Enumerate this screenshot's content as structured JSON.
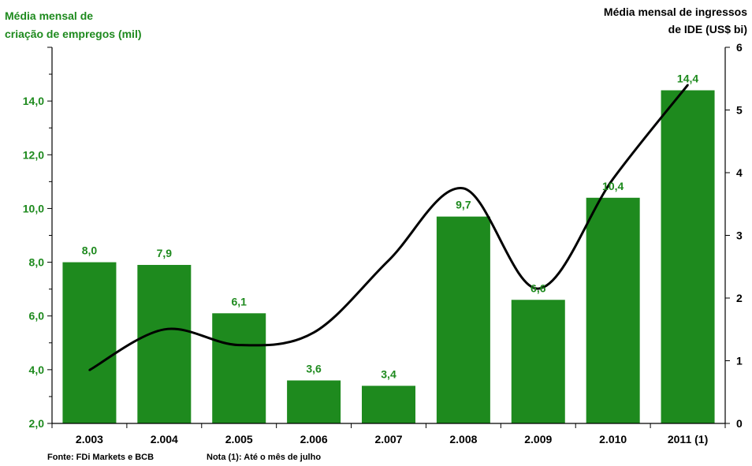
{
  "chart_data": {
    "type": "bar",
    "categories": [
      "2.003",
      "2.004",
      "2.005",
      "2.006",
      "2.007",
      "2.008",
      "2.009",
      "2.010",
      "2011 (1)"
    ],
    "series": [
      {
        "type": "bar",
        "values": [
          8.0,
          7.9,
          6.1,
          3.6,
          3.4,
          9.7,
          6.6,
          10.4,
          14.4
        ],
        "data_labels": [
          "8,0",
          "7,9",
          "6,1",
          "3,6",
          "3,4",
          "9,7",
          "6,6",
          "10,4",
          "14,4"
        ],
        "color": "#1e8a1e"
      },
      {
        "type": "line",
        "axis": "right",
        "values": [
          0.85,
          1.5,
          1.25,
          1.45,
          2.6,
          3.75,
          2.15,
          3.9,
          5.4
        ],
        "color": "#000000"
      }
    ],
    "ylabel_left": "Média mensal de criação de empregos (mil)",
    "ylabel_left_lines": [
      "Média mensal de",
      "criação de empregos (mil)"
    ],
    "ylabel_right": "Média mensal de ingressos de IDE (US$ bi)",
    "ylabel_right_lines": [
      "Média mensal de ingressos",
      "de IDE (US$ bi)"
    ],
    "ylim_left": [
      2.0,
      16.0
    ],
    "yticks_left": [
      "2,0",
      "4,0",
      "6,0",
      "8,0",
      "10,0",
      "12,0",
      "14,0"
    ],
    "ylim_right": [
      0,
      6
    ],
    "yticks_right": [
      "0",
      "1",
      "2",
      "3",
      "4",
      "5",
      "6"
    ],
    "grid": false,
    "colors": {
      "bar": "#1e8a1e",
      "line": "#000000",
      "axis": "#000000",
      "label_green": "#1e8a1e"
    }
  },
  "footnotes": {
    "source": "Fonte: FDi Markets e BCB",
    "note": "Nota (1): Até o mês de julho"
  }
}
